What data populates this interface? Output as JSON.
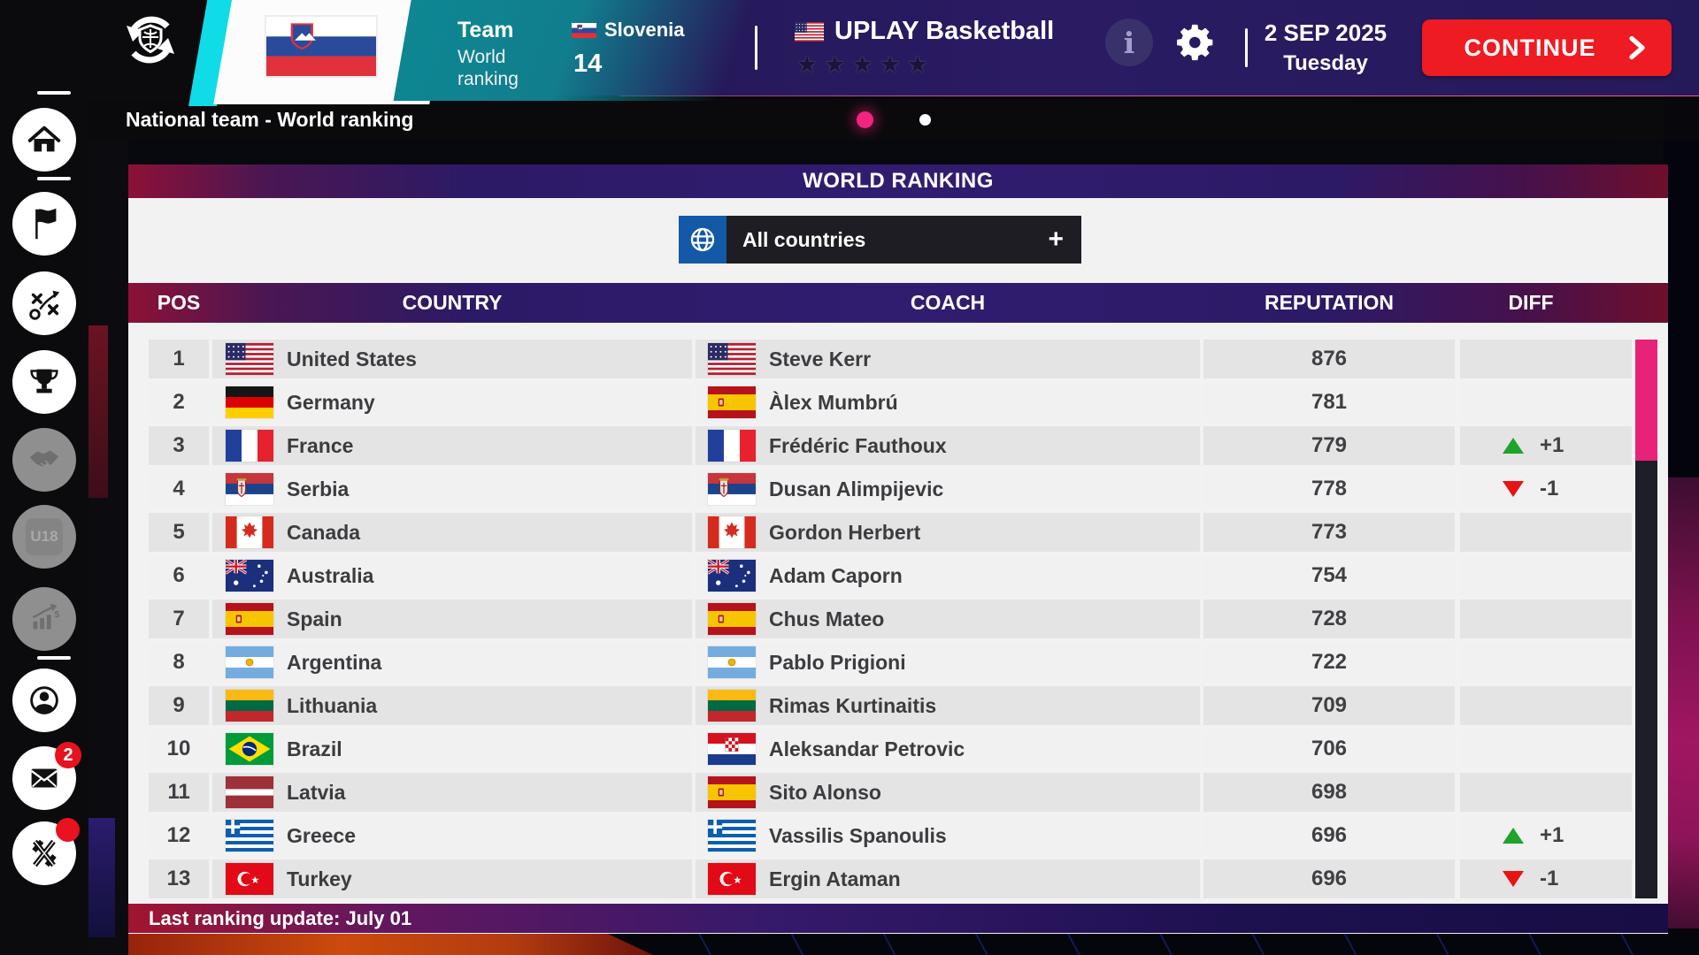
{
  "colors": {
    "accent_pink": "#e82279",
    "active_dot_pink": "#f2247e",
    "continue_red": "#ee1b23",
    "cyan_accent": "#10dce8",
    "teal_accent": "#0e8793",
    "diff_up_green": "#1fa32a",
    "diff_down_red": "#e81313",
    "panel_bg": "#f2f2f2",
    "row_odd": "#e4e4e4",
    "row_even": "#f1f1f1",
    "bar_purple": "#2c1a66",
    "badge_red": "#e8131e"
  },
  "top_bar": {
    "team_context": {
      "line1": "Team",
      "line2": "World ranking"
    },
    "nation": {
      "name": "Slovenia",
      "flag": "si",
      "world_rank": "14"
    },
    "club": {
      "name": "UPLAY Basketball",
      "flag": "us",
      "stars": 5
    },
    "info_symbol": "i",
    "date": {
      "date": "2 SEP 2025",
      "weekday": "Tuesday"
    },
    "continue_label": "CONTINUE"
  },
  "page_header": {
    "title": "National team - World ranking",
    "pagination": {
      "current": 1,
      "total": 2
    }
  },
  "sidebar": {
    "items": [
      {
        "id": "home",
        "icon": "home-icon",
        "state": "active"
      },
      {
        "id": "national-team",
        "icon": "flag-icon",
        "state": "enabled"
      },
      {
        "id": "tactics",
        "icon": "tactics-icon",
        "state": "enabled"
      },
      {
        "id": "competitions",
        "icon": "trophy-icon",
        "state": "enabled"
      },
      {
        "id": "transfers",
        "icon": "handshake-icon",
        "state": "disabled"
      },
      {
        "id": "u18",
        "icon": "u18-icon",
        "state": "disabled",
        "label": "U18"
      },
      {
        "id": "finances",
        "icon": "finance-icon",
        "state": "disabled"
      },
      {
        "id": "profile",
        "icon": "profile-icon",
        "state": "enabled"
      },
      {
        "id": "messages",
        "icon": "mail-icon",
        "state": "enabled",
        "badge": "2"
      },
      {
        "id": "social",
        "icon": "x-logo-icon",
        "state": "enabled",
        "dot": true
      }
    ]
  },
  "panel": {
    "title": "WORLD RANKING",
    "filter": {
      "label": "All countries",
      "expand_symbol": "+"
    },
    "table": {
      "columns": [
        "POS",
        "COUNTRY",
        "COACH",
        "REPUTATION",
        "DIFF"
      ],
      "rows": [
        {
          "pos": "1",
          "country": "United States",
          "country_flag": "us",
          "coach": "Steve Kerr",
          "coach_flag": "us",
          "reputation": "876",
          "diff": null
        },
        {
          "pos": "2",
          "country": "Germany",
          "country_flag": "de",
          "coach": "Àlex Mumbrú",
          "coach_flag": "es",
          "reputation": "781",
          "diff": null
        },
        {
          "pos": "3",
          "country": "France",
          "country_flag": "fr",
          "coach": "Frédéric Fauthoux",
          "coach_flag": "fr",
          "reputation": "779",
          "diff": "+1"
        },
        {
          "pos": "4",
          "country": "Serbia",
          "country_flag": "rs",
          "coach": "Dusan Alimpijevic",
          "coach_flag": "rs",
          "reputation": "778",
          "diff": "-1"
        },
        {
          "pos": "5",
          "country": "Canada",
          "country_flag": "ca",
          "coach": "Gordon Herbert",
          "coach_flag": "ca",
          "reputation": "773",
          "diff": null
        },
        {
          "pos": "6",
          "country": "Australia",
          "country_flag": "au",
          "coach": "Adam Caporn",
          "coach_flag": "au",
          "reputation": "754",
          "diff": null
        },
        {
          "pos": "7",
          "country": "Spain",
          "country_flag": "es",
          "coach": "Chus Mateo",
          "coach_flag": "es",
          "reputation": "728",
          "diff": null
        },
        {
          "pos": "8",
          "country": "Argentina",
          "country_flag": "ar",
          "coach": "Pablo Prigioni",
          "coach_flag": "ar",
          "reputation": "722",
          "diff": null
        },
        {
          "pos": "9",
          "country": "Lithuania",
          "country_flag": "lt",
          "coach": "Rimas Kurtinaitis",
          "coach_flag": "lt",
          "reputation": "709",
          "diff": null
        },
        {
          "pos": "10",
          "country": "Brazil",
          "country_flag": "br",
          "coach": "Aleksandar Petrovic",
          "coach_flag": "hr",
          "reputation": "706",
          "diff": null
        },
        {
          "pos": "11",
          "country": "Latvia",
          "country_flag": "lv",
          "coach": "Sito Alonso",
          "coach_flag": "es",
          "reputation": "698",
          "diff": null
        },
        {
          "pos": "12",
          "country": "Greece",
          "country_flag": "gr",
          "coach": "Vassilis Spanoulis",
          "coach_flag": "gr",
          "reputation": "696",
          "diff": "+1"
        },
        {
          "pos": "13",
          "country": "Turkey",
          "country_flag": "tr",
          "coach": "Ergin Ataman",
          "coach_flag": "tr",
          "reputation": "696",
          "diff": "-1"
        }
      ]
    },
    "footer_text": "Last ranking update: July 01"
  }
}
